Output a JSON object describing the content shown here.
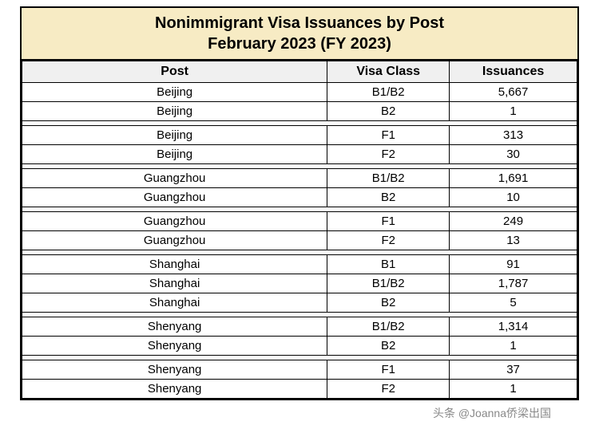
{
  "title_line1": "Nonimmigrant Visa Issuances by Post",
  "title_line2": "February 2023 (FY 2023)",
  "columns": [
    "Post",
    "Visa Class",
    "Issuances"
  ],
  "groups": [
    [
      {
        "post": "Beijing",
        "class": "B1/B2",
        "iss": "5,667"
      },
      {
        "post": "Beijing",
        "class": "B2",
        "iss": "1"
      }
    ],
    [
      {
        "post": "Beijing",
        "class": "F1",
        "iss": "313"
      },
      {
        "post": "Beijing",
        "class": "F2",
        "iss": "30"
      }
    ],
    [
      {
        "post": "Guangzhou",
        "class": "B1/B2",
        "iss": "1,691"
      },
      {
        "post": "Guangzhou",
        "class": "B2",
        "iss": "10"
      }
    ],
    [
      {
        "post": "Guangzhou",
        "class": "F1",
        "iss": "249"
      },
      {
        "post": "Guangzhou",
        "class": "F2",
        "iss": "13"
      }
    ],
    [
      {
        "post": "Shanghai",
        "class": "B1",
        "iss": "91"
      },
      {
        "post": "Shanghai",
        "class": "B1/B2",
        "iss": "1,787"
      },
      {
        "post": "Shanghai",
        "class": "B2",
        "iss": "5"
      }
    ],
    [
      {
        "post": "Shenyang",
        "class": "B1/B2",
        "iss": "1,314"
      },
      {
        "post": "Shenyang",
        "class": "B2",
        "iss": "1"
      }
    ],
    [
      {
        "post": "Shenyang",
        "class": "F1",
        "iss": "37"
      },
      {
        "post": "Shenyang",
        "class": "F2",
        "iss": "1"
      }
    ]
  ],
  "watermark": "头条 @Joanna侨梁出国",
  "colors": {
    "title_bg": "#f7ebc4",
    "header_bg": "#f0f0f0",
    "border": "#000000",
    "background": "#ffffff",
    "watermark_color": "#888888"
  }
}
